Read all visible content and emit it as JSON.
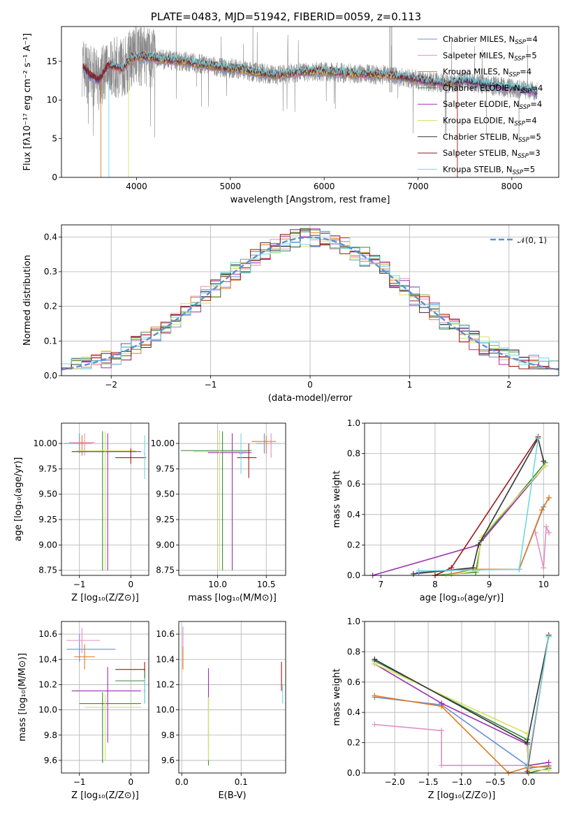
{
  "chart_data": [
    {
      "id": "spectrum",
      "type": "line",
      "title": "PLATE=0483, MJD=51942, FIBERID=0059, z=0.113",
      "xlabel": "wavelength [Angstrom, rest frame]",
      "ylabel": "Flux [fλ10⁻¹⁷ erg cm⁻² s⁻¹ A⁻¹]",
      "xlim": [
        3200,
        8500
      ],
      "ylim": [
        0,
        19.5
      ],
      "xticks": [
        4000,
        5000,
        6000,
        7000,
        8000
      ],
      "yticks": [
        0,
        5,
        10,
        15
      ],
      "grid": false,
      "legend_position": "top-right",
      "continuum": [
        [
          3420,
          14.4
        ],
        [
          3500,
          13.2
        ],
        [
          3600,
          12.5
        ],
        [
          3700,
          14.5
        ],
        [
          3850,
          14.0
        ],
        [
          3950,
          15.5
        ],
        [
          4100,
          15.6
        ],
        [
          4300,
          15.2
        ],
        [
          4500,
          15.0
        ],
        [
          4700,
          14.6
        ],
        [
          4900,
          14.2
        ],
        [
          5100,
          14.0
        ],
        [
          5300,
          13.5
        ],
        [
          5500,
          13.2
        ],
        [
          5700,
          13.5
        ],
        [
          5900,
          13.7
        ],
        [
          6100,
          13.6
        ],
        [
          6300,
          13.4
        ],
        [
          6500,
          13.3
        ],
        [
          6700,
          13.2
        ],
        [
          6900,
          12.8
        ],
        [
          7100,
          12.4
        ],
        [
          7300,
          12.1
        ],
        [
          7500,
          12.5
        ],
        [
          7700,
          12.0
        ],
        [
          7900,
          11.7
        ],
        [
          8100,
          11.4
        ],
        [
          8270,
          11.0
        ]
      ],
      "legend": [
        {
          "label": "Chabrier MILES, N",
          "sub": "SSP",
          "suffix": "=4",
          "color": "#6a90d8"
        },
        {
          "label": "Salpeter MILES, N",
          "sub": "SSP",
          "suffix": "=5",
          "color": "#e090c0"
        },
        {
          "label": "Kroupa MILES, N",
          "sub": "SSP",
          "suffix": "=4",
          "color": "#e07a20"
        },
        {
          "label": "Chabrier ELODIE, N",
          "sub": "SSP",
          "suffix": "=4",
          "color": "#3a8a3a"
        },
        {
          "label": "Salpeter ELODIE, N",
          "sub": "SSP",
          "suffix": "=4",
          "color": "#9a30b0"
        },
        {
          "label": "Kroupa ELODIE, N",
          "sub": "SSP",
          "suffix": "=4",
          "color": "#d8e060"
        },
        {
          "label": "Chabrier STELIB, N",
          "sub": "SSP",
          "suffix": "=5",
          "color": "#333333"
        },
        {
          "label": "Salpeter STELIB, N",
          "sub": "SSP",
          "suffix": "=3",
          "color": "#a01818"
        },
        {
          "label": "Kroupa STELIB, N",
          "sub": "SSP",
          "suffix": "=5",
          "color": "#70d8e0"
        }
      ]
    },
    {
      "id": "residuals",
      "type": "line",
      "xlabel": "(data-model)/error",
      "ylabel": "Normed distribution",
      "xlim": [
        -2.5,
        2.5
      ],
      "ylim": [
        0,
        0.435
      ],
      "xticks": [
        -2,
        -1,
        0,
        1,
        2
      ],
      "yticks": [
        0.0,
        0.1,
        0.2,
        0.3,
        0.4
      ],
      "grid": true,
      "legend": [
        {
          "label": "𝒩(0, 1)",
          "color": "#5b8fd6",
          "style": "dashed"
        }
      ],
      "legend_position": "top-right",
      "bin_width": 0.1,
      "series": [
        {
          "color": "#6a90d8"
        },
        {
          "color": "#e090c0"
        },
        {
          "color": "#e07a20"
        },
        {
          "color": "#3a8a3a"
        },
        {
          "color": "#9a30b0"
        },
        {
          "color": "#d8e060"
        },
        {
          "color": "#333333"
        },
        {
          "color": "#a01818"
        },
        {
          "color": "#70d8e0"
        }
      ]
    },
    {
      "id": "age-z",
      "type": "scatter",
      "xlabel": "Z [log₁₀(Z/Z⊙)]",
      "ylabel": "age  [log₁₀(age/yr)]",
      "xlim": [
        -1.35,
        0.35
      ],
      "ylim": [
        8.7,
        10.2
      ],
      "xticks": [
        -1,
        0
      ],
      "yticks": [
        8.75,
        9.0,
        9.25,
        9.5,
        9.75,
        10.0
      ],
      "grid": true,
      "errorbars": [
        {
          "x": -1.3,
          "x2": -0.85,
          "y": 10.0,
          "ylo": 9.9,
          "yhi": 10.1,
          "xc": -1.0,
          "color": "#6a90d8"
        },
        {
          "x": -1.2,
          "x2": -0.7,
          "y": 10.01,
          "ylo": 9.88,
          "yhi": 10.1,
          "xc": -0.9,
          "color": "#e090c0"
        },
        {
          "x": -1.1,
          "x2": -0.75,
          "y": 10.0,
          "ylo": 9.88,
          "yhi": 10.08,
          "xc": -0.95,
          "color": "#e07a20"
        },
        {
          "x": -1.15,
          "x2": 0.1,
          "y": 9.92,
          "ylo": 8.75,
          "yhi": 10.12,
          "xc": -0.55,
          "color": "#3a8a3a"
        },
        {
          "x": -1.15,
          "x2": 0.2,
          "y": 9.92,
          "ylo": 8.75,
          "yhi": 10.1,
          "xc": -0.45,
          "color": "#9a30b0"
        },
        {
          "x": -1.05,
          "x2": 0.1,
          "y": 9.93,
          "ylo": 8.75,
          "yhi": 10.12,
          "xc": -0.5,
          "color": "#d8e060"
        },
        {
          "x": -0.3,
          "x2": 0.3,
          "y": 9.86,
          "ylo": 9.8,
          "yhi": 9.95,
          "xc": 0.0,
          "color": "#a01818"
        },
        {
          "x": 0.25,
          "x2": 0.28,
          "y": 9.9,
          "ylo": 9.65,
          "yhi": 10.08,
          "xc": 0.27,
          "color": "#70d8e0"
        }
      ]
    },
    {
      "id": "age-mass",
      "type": "scatter",
      "xlabel": "mass [log₁₀(M/M⊙)]",
      "xlim": [
        9.6,
        10.7
      ],
      "ylim": [
        8.7,
        10.2
      ],
      "xticks": [
        10.0,
        10.5
      ],
      "yticks": [
        8.75,
        9.0,
        9.25,
        9.5,
        9.75,
        10.0
      ],
      "grid": true,
      "errorbars": [
        {
          "x": 10.4,
          "x2": 10.55,
          "y": 10.0,
          "ylo": 9.9,
          "yhi": 10.1,
          "xc": 10.48,
          "color": "#6a90d8"
        },
        {
          "x": 10.45,
          "x2": 10.65,
          "y": 10.0,
          "ylo": 9.86,
          "yhi": 10.1,
          "xc": 10.55,
          "color": "#e090c0"
        },
        {
          "x": 10.35,
          "x2": 10.6,
          "y": 10.02,
          "ylo": 9.9,
          "yhi": 10.08,
          "xc": 10.5,
          "color": "#e07a20"
        },
        {
          "x": 9.62,
          "x2": 10.35,
          "y": 9.93,
          "ylo": 8.75,
          "yhi": 10.12,
          "xc": 10.05,
          "color": "#3a8a3a"
        },
        {
          "x": 9.9,
          "x2": 10.35,
          "y": 9.91,
          "ylo": 8.75,
          "yhi": 10.1,
          "xc": 10.15,
          "color": "#9a30b0"
        },
        {
          "x": 9.75,
          "x2": 10.3,
          "y": 9.92,
          "ylo": 8.75,
          "yhi": 10.13,
          "xc": 10.02,
          "color": "#d8e060"
        },
        {
          "x": 10.2,
          "x2": 10.4,
          "y": 9.86,
          "ylo": 9.66,
          "yhi": 10.0,
          "xc": 10.32,
          "color": "#a01818"
        },
        {
          "x": 10.22,
          "x2": 10.26,
          "y": 9.9,
          "ylo": 9.7,
          "yhi": 10.1,
          "xc": 10.24,
          "color": "#70d8e0"
        }
      ]
    },
    {
      "id": "weight-age",
      "type": "line",
      "xlabel": "age  [log₁₀(age/yr)]",
      "ylabel": "mass weight",
      "xlim": [
        6.7,
        10.28
      ],
      "ylim": [
        0,
        1.0
      ],
      "xticks": [
        7,
        8,
        9,
        10
      ],
      "yticks": [
        0.0,
        0.2,
        0.4,
        0.6,
        0.8,
        1.0
      ],
      "grid": true,
      "series": [
        {
          "color": "#6a90d8",
          "points": [
            [
              7.7,
              0.02
            ],
            [
              8.7,
              0.04
            ],
            [
              9.55,
              0.04
            ],
            [
              10.0,
              0.45
            ],
            [
              10.1,
              0.51
            ]
          ]
        },
        {
          "color": "#e090c0",
          "points": [
            [
              9.85,
              0.28
            ],
            [
              10.0,
              0.05
            ],
            [
              10.05,
              0.32
            ],
            [
              10.1,
              0.28
            ]
          ]
        },
        {
          "color": "#e07a20",
          "points": [
            [
              8.3,
              0.01
            ],
            [
              8.7,
              0.04
            ],
            [
              9.55,
              0.04
            ],
            [
              9.97,
              0.43
            ],
            [
              10.1,
              0.51
            ]
          ]
        },
        {
          "color": "#3a8a3a",
          "points": [
            [
              8.0,
              0.0
            ],
            [
              8.75,
              0.02
            ],
            [
              8.85,
              0.23
            ],
            [
              10.03,
              0.74
            ]
          ]
        },
        {
          "color": "#9a30b0",
          "points": [
            [
              6.85,
              0.0
            ],
            [
              8.8,
              0.2
            ],
            [
              10.03,
              0.72
            ]
          ]
        },
        {
          "color": "#d8e060",
          "points": [
            [
              8.2,
              0.0
            ],
            [
              8.78,
              0.03
            ],
            [
              8.85,
              0.25
            ],
            [
              10.03,
              0.72
            ]
          ]
        },
        {
          "color": "#333333",
          "points": [
            [
              7.6,
              0.01
            ],
            [
              8.7,
              0.05
            ],
            [
              8.8,
              0.2
            ],
            [
              9.9,
              0.9
            ],
            [
              10.0,
              0.75
            ]
          ]
        },
        {
          "color": "#a01818",
          "points": [
            [
              8.0,
              0.0
            ],
            [
              8.3,
              0.05
            ],
            [
              9.9,
              0.91
            ]
          ]
        },
        {
          "color": "#70d8e0",
          "points": [
            [
              7.7,
              0.03
            ],
            [
              9.55,
              0.04
            ],
            [
              9.9,
              0.9
            ]
          ]
        }
      ]
    },
    {
      "id": "mass-z",
      "type": "scatter",
      "xlabel": "Z [log₁₀(Z/Z⊙)]",
      "ylabel": "mass [log₁₀(M/M⊙)]",
      "xlim": [
        -1.35,
        0.35
      ],
      "ylim": [
        9.5,
        10.7
      ],
      "xticks": [
        -1,
        0
      ],
      "yticks": [
        9.6,
        9.8,
        10.0,
        10.2,
        10.4,
        10.6
      ],
      "grid": true,
      "errorbars": [
        {
          "x": -1.25,
          "x2": -0.3,
          "y": 10.48,
          "ylo": 10.38,
          "yhi": 10.6,
          "xc": -1.0,
          "color": "#6a90d8"
        },
        {
          "x": -1.25,
          "x2": -0.6,
          "y": 10.55,
          "ylo": 10.45,
          "yhi": 10.65,
          "xc": -0.95,
          "color": "#e090c0"
        },
        {
          "x": -1.1,
          "x2": -0.7,
          "y": 10.42,
          "ylo": 10.32,
          "yhi": 10.52,
          "xc": -0.9,
          "color": "#e07a20"
        },
        {
          "x": -1.0,
          "x2": 0.2,
          "y": 10.05,
          "ylo": 9.58,
          "yhi": 10.14,
          "xc": -0.55,
          "color": "#3a8a3a"
        },
        {
          "x": -1.15,
          "x2": 0.2,
          "y": 10.15,
          "ylo": 9.74,
          "yhi": 10.34,
          "xc": -0.45,
          "color": "#9a30b0"
        },
        {
          "x": -0.9,
          "x2": 0.2,
          "y": 10.02,
          "ylo": 9.6,
          "yhi": 10.12,
          "xc": -0.5,
          "color": "#d8e060"
        },
        {
          "x": -0.3,
          "x2": 0.28,
          "y": 10.32,
          "ylo": 10.25,
          "yhi": 10.38,
          "xc": 0.27,
          "color": "#a01818"
        },
        {
          "x": -0.3,
          "x2": 0.28,
          "y": 10.23,
          "ylo": 10.05,
          "yhi": 10.3,
          "xc": 0.27,
          "color": "#3a8a3a"
        },
        {
          "x": 0.25,
          "x2": 0.29,
          "y": 10.15,
          "ylo": 10.05,
          "yhi": 10.25,
          "xc": 0.27,
          "color": "#70d8e0"
        }
      ]
    },
    {
      "id": "mass-ebv",
      "type": "scatter",
      "xlabel": "E(B-V)",
      "xlim": [
        -0.005,
        0.175
      ],
      "ylim": [
        9.5,
        10.7
      ],
      "xticks": [
        0.0,
        0.1
      ],
      "yticks": [
        9.6,
        9.8,
        10.0,
        10.2,
        10.4,
        10.6
      ],
      "grid": true,
      "errorbars": [
        {
          "xc": 0.002,
          "ylo": 10.35,
          "yhi": 10.66,
          "color": "#e090c0"
        },
        {
          "xc": 0.002,
          "ylo": 10.32,
          "yhi": 10.5,
          "color": "#e07a20"
        },
        {
          "xc": 0.045,
          "ylo": 9.56,
          "yhi": 10.12,
          "color": "#3a8a3a"
        },
        {
          "xc": 0.045,
          "ylo": 9.7,
          "yhi": 10.33,
          "color": "#9a30b0"
        },
        {
          "xc": 0.045,
          "ylo": 9.6,
          "yhi": 10.1,
          "color": "#d8e060"
        },
        {
          "xc": 0.168,
          "ylo": 10.15,
          "yhi": 10.38,
          "color": "#a01818"
        },
        {
          "xc": 0.17,
          "ylo": 10.05,
          "yhi": 10.2,
          "color": "#70d8e0"
        }
      ]
    },
    {
      "id": "weight-z",
      "type": "line",
      "xlabel": "Z [log₁₀(Z/Z⊙)]",
      "ylabel": "mass weight",
      "xlim": [
        -2.45,
        0.45
      ],
      "ylim": [
        0,
        1.0
      ],
      "xticks": [
        -2.0,
        -1.5,
        -1.0,
        -0.5,
        0.0
      ],
      "yticks": [
        0.0,
        0.2,
        0.4,
        0.6,
        0.8,
        1.0
      ],
      "grid": true,
      "series": [
        {
          "color": "#6a90d8",
          "points": [
            [
              -2.3,
              0.5
            ],
            [
              -1.3,
              0.45
            ],
            [
              -0.02,
              0.05
            ],
            [
              0.0,
              0.03
            ],
            [
              0.3,
              0.05
            ]
          ]
        },
        {
          "color": "#e090c0",
          "points": [
            [
              -2.3,
              0.32
            ],
            [
              -1.3,
              0.28
            ],
            [
              -1.3,
              0.05
            ],
            [
              -0.02,
              0.05
            ],
            [
              0.0,
              0.02
            ]
          ]
        },
        {
          "color": "#e07a20",
          "points": [
            [
              -2.3,
              0.51
            ],
            [
              -1.3,
              0.44
            ],
            [
              -0.3,
              0.0
            ],
            [
              0.0,
              0.04
            ],
            [
              0.3,
              0.04
            ]
          ]
        },
        {
          "color": "#3a8a3a",
          "points": [
            [
              -2.3,
              0.74
            ],
            [
              -0.02,
              0.22
            ],
            [
              0.0,
              0.0
            ],
            [
              0.3,
              0.03
            ]
          ]
        },
        {
          "color": "#9a30b0",
          "points": [
            [
              -2.3,
              0.72
            ],
            [
              -1.3,
              0.46
            ],
            [
              -0.02,
              0.19
            ],
            [
              0.0,
              0.05
            ],
            [
              0.3,
              0.07
            ]
          ]
        },
        {
          "color": "#d8e060",
          "points": [
            [
              -2.3,
              0.72
            ],
            [
              -0.02,
              0.26
            ],
            [
              0.0,
              0.02
            ],
            [
              0.3,
              0.02
            ]
          ]
        },
        {
          "color": "#333333",
          "points": [
            [
              -2.3,
              0.75
            ],
            [
              -0.02,
              0.2
            ],
            [
              0.3,
              0.9
            ]
          ]
        },
        {
          "color": "#a01818",
          "points": [
            [
              -0.02,
              0.01
            ],
            [
              0.3,
              0.91
            ]
          ]
        },
        {
          "color": "#70d8e0",
          "points": [
            [
              -0.02,
              0.04
            ],
            [
              0.3,
              0.9
            ]
          ]
        }
      ]
    }
  ]
}
